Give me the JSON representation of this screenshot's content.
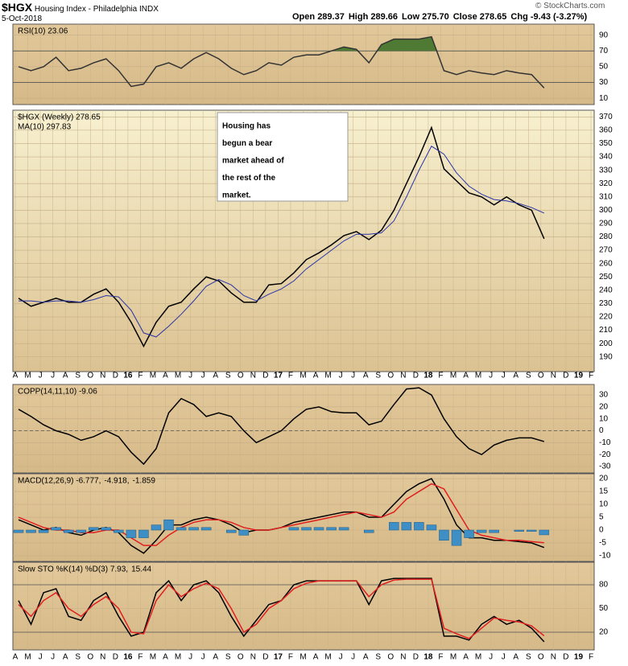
{
  "header": {
    "symbol": "$HGX",
    "name": "Housing Index - Philadelphia INDX",
    "date": "5-Oct-2018",
    "copyright": "© StockCharts.com",
    "quote": [
      {
        "label": "Open",
        "value": "289.37"
      },
      {
        "label": "High",
        "value": "289.66"
      },
      {
        "label": "Low",
        "value": "275.70"
      },
      {
        "label": "Close",
        "value": "278.65"
      },
      {
        "label": "Chg",
        "value": "-9.43 (-3.27%)"
      }
    ]
  },
  "chart_data": [
    {
      "type": "line",
      "ylim": [
        2,
        104
      ],
      "yticks": [
        10,
        30,
        50,
        70,
        90
      ],
      "levels": [
        30,
        70
      ],
      "fill_level": 70,
      "fill_color": "#4e7a34",
      "series": [
        {
          "name": "RSI(10) 23.06",
          "color": "#333333",
          "values": [
            50,
            45,
            50,
            62,
            45,
            48,
            55,
            60,
            45,
            25,
            28,
            50,
            55,
            48,
            60,
            68,
            60,
            48,
            40,
            45,
            55,
            52,
            62,
            65,
            65,
            70,
            75,
            72,
            55,
            78,
            85,
            85,
            85,
            88,
            45,
            40,
            45,
            42,
            40,
            45,
            42,
            40,
            23.06,
            null,
            null,
            null,
            null
          ]
        }
      ]
    },
    {
      "type": "line",
      "ylim": [
        179,
        375
      ],
      "yticks": [
        190,
        200,
        210,
        220,
        230,
        240,
        250,
        260,
        270,
        280,
        290,
        300,
        310,
        320,
        330,
        340,
        350,
        360,
        370
      ],
      "categories": [
        "A",
        "M",
        "J",
        "J",
        "A",
        "S",
        "O",
        "N",
        "D",
        "16",
        "F",
        "M",
        "A",
        "M",
        "J",
        "J",
        "A",
        "S",
        "O",
        "N",
        "D",
        "17",
        "F",
        "M",
        "A",
        "M",
        "J",
        "J",
        "A",
        "S",
        "O",
        "N",
        "D",
        "18",
        "F",
        "M",
        "A",
        "M",
        "J",
        "J",
        "A",
        "S",
        "O",
        "N",
        "D",
        "19",
        "F"
      ],
      "annotation": [
        "Housing has",
        "begun a bear",
        "market ahead of",
        "the rest of the",
        "market."
      ],
      "series": [
        {
          "name": "$HGX (Weekly) 278.65",
          "color": "#000000",
          "values": [
            234,
            228,
            231,
            234,
            231,
            231,
            237,
            241,
            231,
            216,
            198,
            216,
            228,
            231,
            241,
            250,
            247,
            238,
            231,
            231,
            244,
            245,
            253,
            263,
            268,
            274,
            281,
            284,
            278,
            285,
            300,
            320,
            340,
            362,
            331,
            322,
            313,
            310,
            304,
            310,
            304,
            300,
            278.65,
            null,
            null,
            null,
            null
          ]
        },
        {
          "name": "MA(10) 297.83",
          "color": "#2a35a8",
          "values": [
            232,
            232,
            231,
            232,
            232,
            231,
            233,
            236,
            235,
            225,
            208,
            205,
            213,
            222,
            232,
            243,
            248,
            244,
            236,
            232,
            237,
            241,
            247,
            256,
            263,
            270,
            277,
            282,
            282,
            283,
            292,
            310,
            330,
            348,
            342,
            328,
            318,
            312,
            308,
            307,
            305,
            302,
            297.83,
            null,
            null,
            null,
            null
          ]
        }
      ]
    },
    {
      "type": "line",
      "ylim": [
        -35.4,
        38.8
      ],
      "yticks": [
        -30,
        -20,
        -10,
        0,
        10,
        20,
        30
      ],
      "levels": [
        0
      ],
      "series": [
        {
          "name": "COPP(14,11,10) -9.06",
          "color": "#000000",
          "values": [
            18,
            12,
            5,
            0,
            -3,
            -8,
            -5,
            0,
            -5,
            -18,
            -28,
            -15,
            15,
            27,
            22,
            12,
            15,
            12,
            0,
            -10,
            -5,
            0,
            10,
            18,
            20,
            16,
            15,
            15,
            5,
            8,
            22,
            35,
            36,
            30,
            10,
            -5,
            -15,
            -20,
            -12,
            -8,
            -6,
            -6,
            -9.06,
            null,
            null,
            null,
            null
          ]
        }
      ]
    },
    {
      "type": "line",
      "ylim": [
        -12.2,
        21.9
      ],
      "yticks": [
        -10,
        -5,
        0,
        5,
        10,
        15,
        20
      ],
      "series": [
        {
          "name": "MACD(12,26,9) -6.777,",
          "color": "#000000",
          "values": [
            4,
            2,
            0,
            1,
            -1,
            -2,
            0,
            1,
            -1,
            -6,
            -9,
            -4,
            2,
            2,
            4,
            5,
            4,
            2,
            -1,
            0,
            0,
            1,
            3,
            4,
            5,
            6,
            7,
            7,
            5,
            5,
            10,
            15,
            18,
            20,
            12,
            2,
            -3,
            -3,
            -4,
            -4,
            -4.5,
            -5,
            -6.777,
            null,
            null,
            null,
            null
          ]
        },
        {
          "name": "-4.918,",
          "color": "#e02020",
          "values": [
            5,
            3,
            1,
            0,
            0,
            -1,
            -1,
            0,
            0,
            -3,
            -6,
            -6,
            -2,
            1,
            3,
            4,
            4,
            3,
            1,
            0,
            0,
            1,
            2,
            3,
            4,
            5,
            6,
            7,
            6,
            5,
            7,
            12,
            15,
            18,
            16,
            8,
            0,
            -2,
            -3,
            -4,
            -4,
            -4.5,
            -4.918,
            null,
            null,
            null,
            null
          ]
        },
        {
          "name": "-1.859",
          "color": "#3d8fc6",
          "style": "histogram",
          "values": [
            -1,
            -1,
            -1,
            1,
            -1,
            -1,
            1,
            1,
            -1,
            -3,
            -3,
            2,
            4,
            1,
            1,
            1,
            0,
            -1,
            -2,
            0,
            0,
            0,
            1,
            1,
            1,
            1,
            1,
            0,
            -1,
            0,
            3,
            3,
            3,
            2,
            -4,
            -6,
            -3,
            -1,
            -1,
            0,
            -0.5,
            -0.5,
            -1.859,
            null,
            null,
            null,
            null
          ]
        }
      ]
    },
    {
      "type": "line",
      "ylim": [
        -2.4,
        108.5
      ],
      "yticks": [
        20,
        50,
        80
      ],
      "levels": [
        20,
        80
      ],
      "categories": [
        "A",
        "M",
        "J",
        "J",
        "A",
        "S",
        "O",
        "N",
        "D",
        "16",
        "F",
        "M",
        "A",
        "M",
        "J",
        "J",
        "A",
        "S",
        "O",
        "N",
        "D",
        "17",
        "F",
        "M",
        "A",
        "M",
        "J",
        "J",
        "A",
        "S",
        "O",
        "N",
        "D",
        "18",
        "F",
        "M",
        "A",
        "M",
        "J",
        "J",
        "A",
        "S",
        "O",
        "N",
        "D",
        "19",
        "F"
      ],
      "series": [
        {
          "name": "Slow STO %K(14) %D(3) 7.93,",
          "color": "#000000",
          "values": [
            60,
            30,
            70,
            75,
            40,
            35,
            60,
            70,
            40,
            15,
            20,
            70,
            85,
            60,
            80,
            85,
            70,
            40,
            15,
            35,
            55,
            60,
            80,
            85,
            85,
            85,
            85,
            85,
            55,
            85,
            88,
            88,
            88,
            88,
            15,
            15,
            10,
            30,
            40,
            30,
            35,
            25,
            7.93,
            null,
            null,
            null,
            null
          ]
        },
        {
          "name": "15.44",
          "color": "#e02020",
          "values": [
            55,
            40,
            60,
            70,
            50,
            40,
            55,
            65,
            50,
            20,
            18,
            60,
            80,
            65,
            75,
            82,
            75,
            50,
            20,
            30,
            50,
            60,
            75,
            82,
            85,
            85,
            85,
            85,
            65,
            80,
            86,
            87,
            87,
            87,
            25,
            18,
            12,
            25,
            38,
            35,
            33,
            28,
            15.44,
            null,
            null,
            null,
            null
          ]
        }
      ]
    }
  ]
}
